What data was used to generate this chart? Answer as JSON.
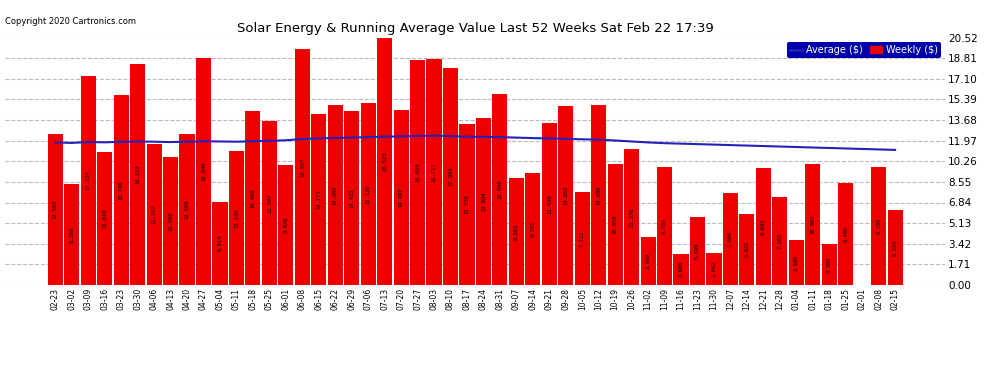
{
  "title": "Solar Energy & Running Average Value Last 52 Weeks Sat Feb 22 17:39",
  "copyright": "Copyright 2020 Cartronics.com",
  "bar_color": "#ee0000",
  "avg_line_color": "#2222bb",
  "background_color": "#ffffff",
  "grid_color": "#bbbbbb",
  "categories": [
    "02-23",
    "03-02",
    "03-09",
    "03-16",
    "03-23",
    "03-30",
    "04-06",
    "04-13",
    "04-20",
    "04-27",
    "05-04",
    "05-11",
    "05-18",
    "05-25",
    "06-01",
    "06-08",
    "06-15",
    "06-22",
    "06-29",
    "07-06",
    "07-13",
    "07-20",
    "07-27",
    "08-03",
    "08-10",
    "08-17",
    "08-24",
    "08-31",
    "09-07",
    "09-14",
    "09-21",
    "09-28",
    "10-05",
    "10-12",
    "10-19",
    "10-26",
    "11-02",
    "11-09",
    "11-16",
    "11-23",
    "11-30",
    "12-07",
    "12-14",
    "12-21",
    "12-28",
    "01-04",
    "01-11",
    "01-18",
    "01-25",
    "02-01",
    "02-08",
    "02-15"
  ],
  "values": [
    12.502,
    8.359,
    17.334,
    11.019,
    15.748,
    18.329,
    11.707,
    10.58,
    12.508,
    18.84,
    6.914,
    11.14,
    14.408,
    13.597,
    9.928,
    19.597,
    14.173,
    14.9,
    14.433,
    15.12,
    20.523,
    14.497,
    18.659,
    18.717,
    17.988,
    13.339,
    13.884,
    15.84,
    8.883,
    9.261,
    13.438,
    14.852,
    7.722,
    14.896,
    10.058,
    11.276,
    3.989,
    9.787,
    2.608,
    5.599,
    2.642,
    7.606,
    5.921,
    9.693,
    7.262,
    3.69,
    10.002,
    3.383,
    8.465,
    0.008,
    9.799,
    6.234
  ],
  "avg_values": [
    11.82,
    11.78,
    11.85,
    11.83,
    11.87,
    11.9,
    11.88,
    11.85,
    11.88,
    11.92,
    11.9,
    11.88,
    11.92,
    11.95,
    12.0,
    12.1,
    12.15,
    12.19,
    12.22,
    12.26,
    12.3,
    12.32,
    12.36,
    12.38,
    12.35,
    12.3,
    12.28,
    12.26,
    12.22,
    12.18,
    12.15,
    12.12,
    12.08,
    12.05,
    11.98,
    11.9,
    11.82,
    11.76,
    11.72,
    11.68,
    11.64,
    11.6,
    11.56,
    11.52,
    11.48,
    11.44,
    11.4,
    11.36,
    11.32,
    11.28,
    11.24,
    11.2
  ],
  "ylim": [
    0.0,
    20.52
  ],
  "yticks": [
    0.0,
    1.71,
    3.42,
    5.13,
    6.84,
    8.55,
    10.26,
    11.97,
    13.68,
    15.39,
    17.1,
    18.81,
    20.52
  ],
  "legend_avg_label": "Average ($)",
  "legend_weekly_label": "Weekly ($)"
}
